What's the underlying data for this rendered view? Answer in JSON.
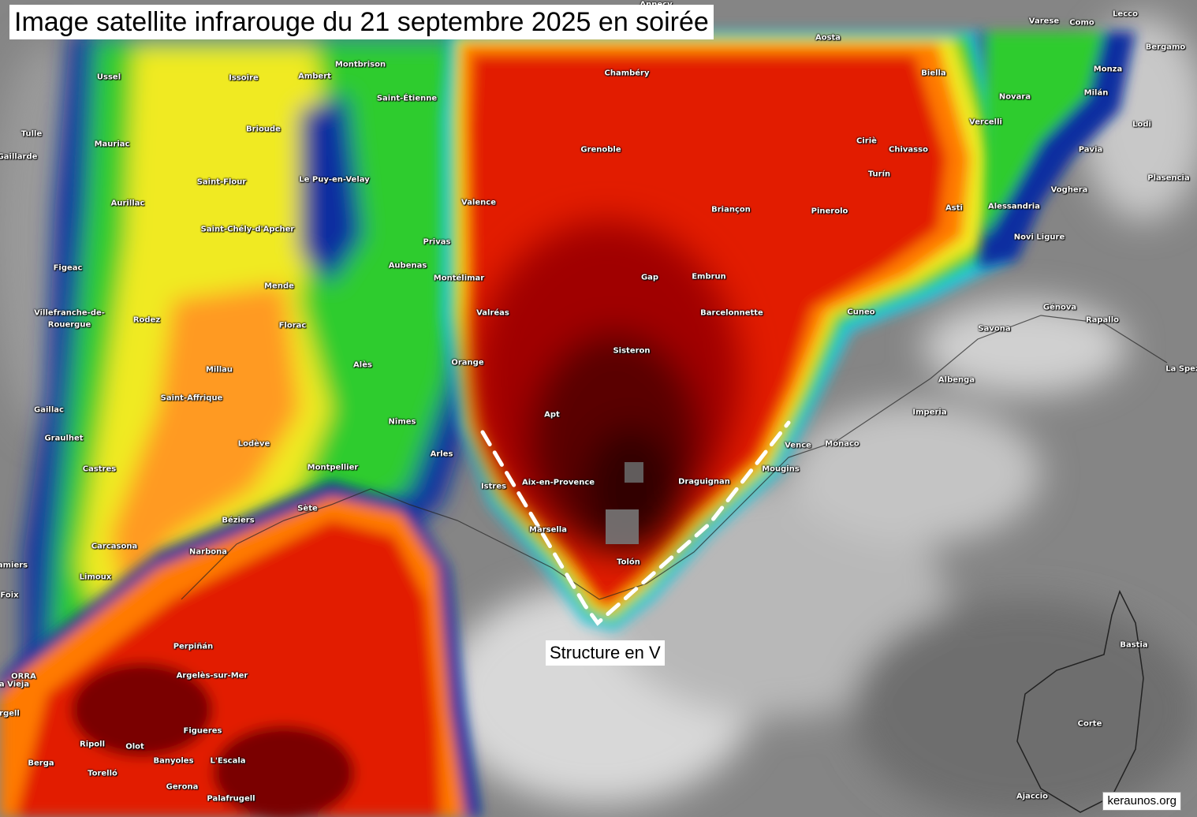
{
  "title": "Image satellite infrarouge du 21 septembre 2025 en soirée",
  "annotation": "Structure en V",
  "credit": "keraunos.org",
  "colors": {
    "cold_top_core": "#3a0000",
    "cold_top": "#e21a00",
    "mid_orange": "#ff7a00",
    "mid_yellow": "#f0ea20",
    "mid_green": "#2ecc2e",
    "low_blue": "#0a2fa0",
    "low_cyan": "#20c8e8",
    "clear_gray": "#8a8a8a",
    "marker_line": "#ffffff"
  },
  "cities": [
    {
      "name": "Annecy"
    },
    {
      "name": "Aosta"
    },
    {
      "name": "Varese"
    },
    {
      "name": "Como"
    },
    {
      "name": "Lecco"
    },
    {
      "name": "Bergamo"
    },
    {
      "name": "Monza"
    },
    {
      "name": "Milán"
    },
    {
      "name": "Novara"
    },
    {
      "name": "Biella"
    },
    {
      "name": "Vercelli"
    },
    {
      "name": "Lodi"
    },
    {
      "name": "Pavia"
    },
    {
      "name": "Chivasso"
    },
    {
      "name": "Ciriè"
    },
    {
      "name": "Turín"
    },
    {
      "name": "Voghera"
    },
    {
      "name": "Plasencia"
    },
    {
      "name": "Asti"
    },
    {
      "name": "Alessandria"
    },
    {
      "name": "Pinerolo"
    },
    {
      "name": "Novi Ligure"
    },
    {
      "name": "Cuneo"
    },
    {
      "name": "Génova"
    },
    {
      "name": "Savona"
    },
    {
      "name": "Rapallo"
    },
    {
      "name": "La Spez"
    },
    {
      "name": "Albenga"
    },
    {
      "name": "Imperia"
    },
    {
      "name": "Mónaco"
    },
    {
      "name": "Chambéry"
    },
    {
      "name": "Grenoble"
    },
    {
      "name": "Briançon"
    },
    {
      "name": "Gap"
    },
    {
      "name": "Embrun"
    },
    {
      "name": "Barcelonnette"
    },
    {
      "name": "Sisteron"
    },
    {
      "name": "Apt"
    },
    {
      "name": "Aix-en-Provence"
    },
    {
      "name": "Draguignan"
    },
    {
      "name": "Vence"
    },
    {
      "name": "Mougins"
    },
    {
      "name": "Marsella"
    },
    {
      "name": "Tolón"
    },
    {
      "name": "Istres"
    },
    {
      "name": "Arles"
    },
    {
      "name": "Nîmes"
    },
    {
      "name": "Orange"
    },
    {
      "name": "Valréas"
    },
    {
      "name": "Montélimar"
    },
    {
      "name": "Privas"
    },
    {
      "name": "Aubenas"
    },
    {
      "name": "Valence"
    },
    {
      "name": "Saint-Étienne"
    },
    {
      "name": "Montbrison"
    },
    {
      "name": "Ambert"
    },
    {
      "name": "Issoire"
    },
    {
      "name": "Brioude"
    },
    {
      "name": "Le Puy-en-Velay"
    },
    {
      "name": "Saint-Flour"
    },
    {
      "name": "Saint-Chély-d'Apcher"
    },
    {
      "name": "Mende"
    },
    {
      "name": "Florac"
    },
    {
      "name": "Alès"
    },
    {
      "name": "Millau"
    },
    {
      "name": "Rodez"
    },
    {
      "name": "Saint-Affrique"
    },
    {
      "name": "Lodève"
    },
    {
      "name": "Montpellier"
    },
    {
      "name": "Sète"
    },
    {
      "name": "Béziers"
    },
    {
      "name": "Narbona"
    },
    {
      "name": "Carcasona"
    },
    {
      "name": "Limoux"
    },
    {
      "name": "Castres"
    },
    {
      "name": "Graulhet"
    },
    {
      "name": "Gaillac"
    },
    {
      "name": "Villefranche-de-"
    },
    {
      "name": "Rouergue"
    },
    {
      "name": "Figeac"
    },
    {
      "name": "Aurillac"
    },
    {
      "name": "Mauriac"
    },
    {
      "name": "Ussel"
    },
    {
      "name": "Tulle"
    },
    {
      "name": "Gaillarde"
    },
    {
      "name": "Perpiñán"
    },
    {
      "name": "Argelès-sur-Mer"
    },
    {
      "name": "Figueres"
    },
    {
      "name": "Ripoll"
    },
    {
      "name": "Olot"
    },
    {
      "name": "Berga"
    },
    {
      "name": "Banyoles"
    },
    {
      "name": "L'Escala"
    },
    {
      "name": "Torelló"
    },
    {
      "name": "Gerona"
    },
    {
      "name": "Palafrugell"
    },
    {
      "name": "Bastia"
    },
    {
      "name": "Corte"
    },
    {
      "name": "Ajaccio"
    },
    {
      "name": "Foix"
    },
    {
      "name": "amiers"
    },
    {
      "name": "a Vieja"
    },
    {
      "name": "rgell"
    },
    {
      "name": "ORRA"
    }
  ]
}
